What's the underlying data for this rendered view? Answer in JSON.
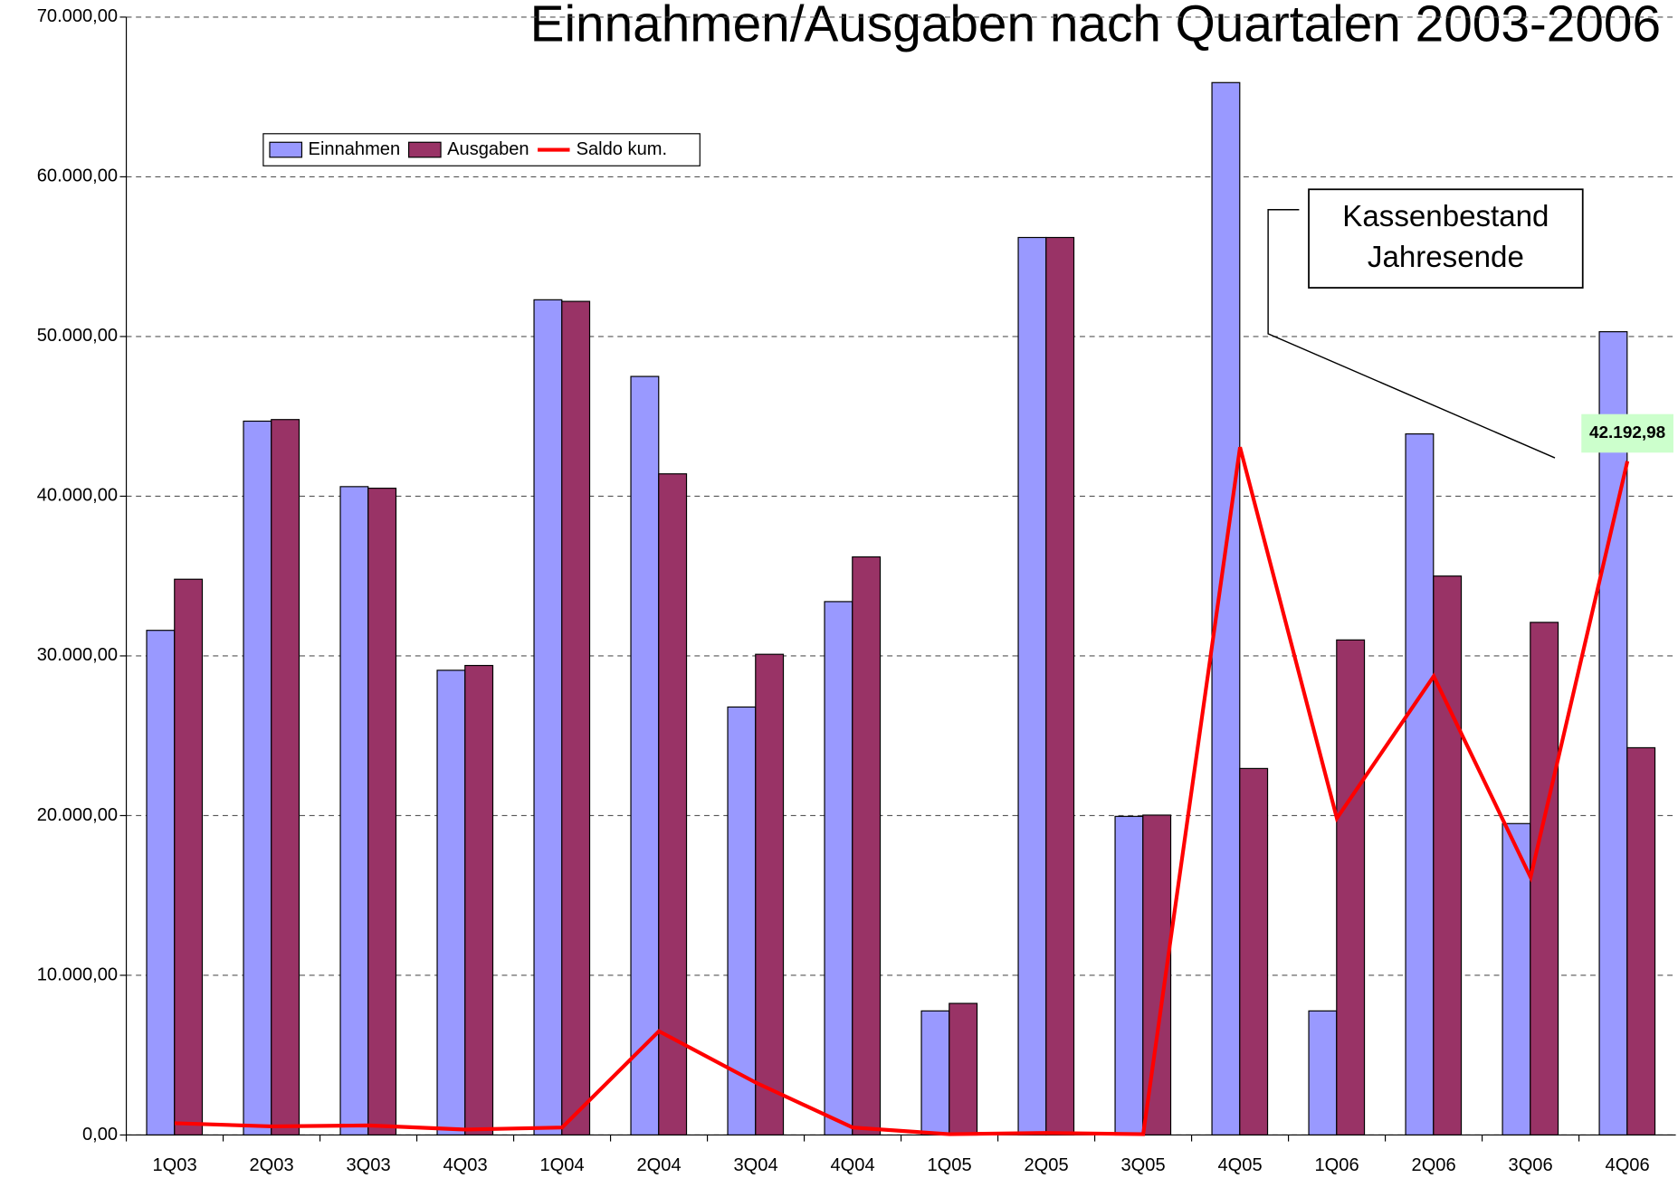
{
  "chart_data": {
    "type": "bar_line",
    "title": "Einnahmen/Ausgaben nach Quartalen 2003-2006",
    "categories": [
      "1Q03",
      "2Q03",
      "3Q03",
      "4Q03",
      "1Q04",
      "2Q04",
      "3Q04",
      "4Q04",
      "1Q05",
      "2Q05",
      "3Q05",
      "4Q05",
      "1Q06",
      "2Q06",
      "3Q06",
      "4Q06"
    ],
    "series": [
      {
        "name": "Einnahmen",
        "type": "bar",
        "color": "#9999ff",
        "values": [
          31600,
          44700,
          40600,
          29100,
          52300,
          47500,
          26800,
          33400,
          7770,
          56200,
          19950,
          65900,
          7770,
          43900,
          19500,
          50300
        ]
      },
      {
        "name": "Ausgaben",
        "type": "bar",
        "color": "#993366",
        "values": [
          34800,
          44800,
          40500,
          29400,
          52200,
          41400,
          30100,
          36200,
          8240,
          56200,
          20030,
          22950,
          31000,
          35000,
          32100,
          24250
        ]
      },
      {
        "name": "Saldo kum.",
        "type": "line",
        "color": "#ff0000",
        "values": [
          740,
          540,
          600,
          340,
          470,
          6500,
          3280,
          470,
          50,
          130,
          50,
          43070,
          19830,
          28730,
          16140,
          42192.98
        ],
        "value_labels": [
          null,
          null,
          null,
          null,
          null,
          null,
          null,
          null,
          null,
          null,
          null,
          null,
          null,
          null,
          null,
          "42.192,98"
        ]
      }
    ],
    "ylim": [
      0,
      70000
    ],
    "yticks": [
      {
        "value": 0,
        "label": "0,00"
      },
      {
        "value": 10000,
        "label": "10.000,00"
      },
      {
        "value": 20000,
        "label": "20.000,00"
      },
      {
        "value": 30000,
        "label": "30.000,00"
      },
      {
        "value": 40000,
        "label": "40.000,00"
      },
      {
        "value": 50000,
        "label": "50.000,00"
      },
      {
        "value": 60000,
        "label": "60.000,00"
      },
      {
        "value": 70000,
        "label": "70.000,00"
      }
    ],
    "grid": true,
    "legend": "top-left",
    "annotation": [
      "Kassenbestand",
      "Jahresende"
    ]
  }
}
